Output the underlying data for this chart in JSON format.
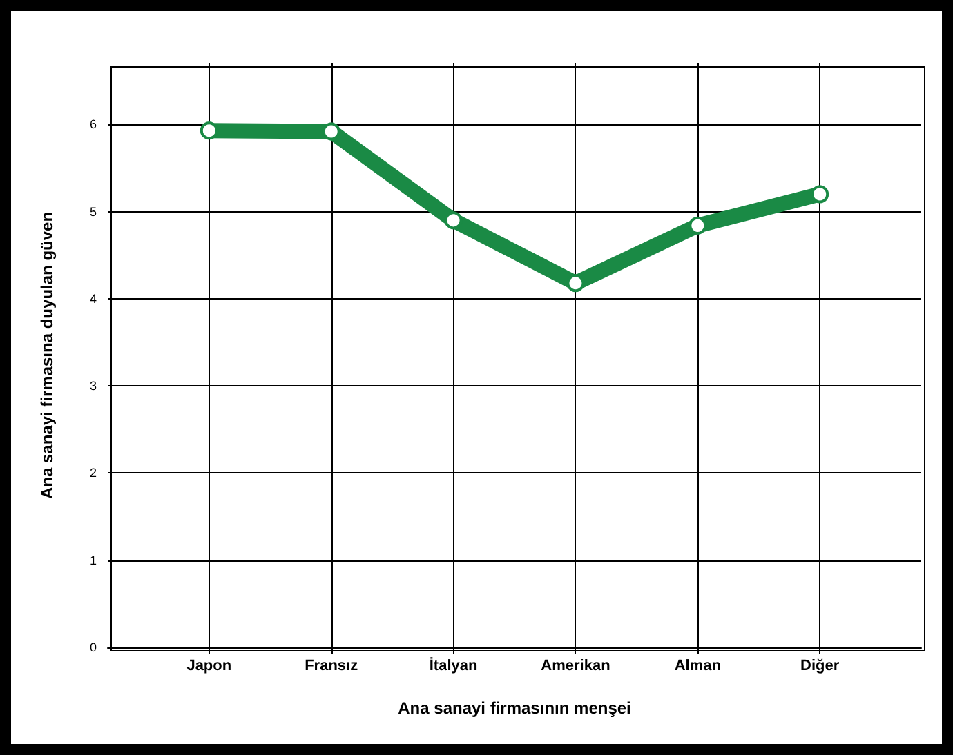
{
  "chart_data": {
    "type": "line",
    "xlabel": "Ana sanayi firmasının menşei",
    "ylabel": "Ana sanayi firmasına duyulan güven",
    "categories": [
      "Japon",
      "Fransız",
      "İtalyan",
      "Amerikan",
      "Alman",
      "Diğer"
    ],
    "series": [
      {
        "color": "#1a8a45",
        "values": [
          5.93,
          5.92,
          4.9,
          4.18,
          4.84,
          5.2
        ]
      }
    ],
    "ylim": [
      0,
      6.7
    ],
    "yticks": [
      0,
      1,
      2,
      3,
      4,
      5,
      6
    ],
    "grid": true,
    "marker": "circle",
    "line_style": "solid"
  }
}
